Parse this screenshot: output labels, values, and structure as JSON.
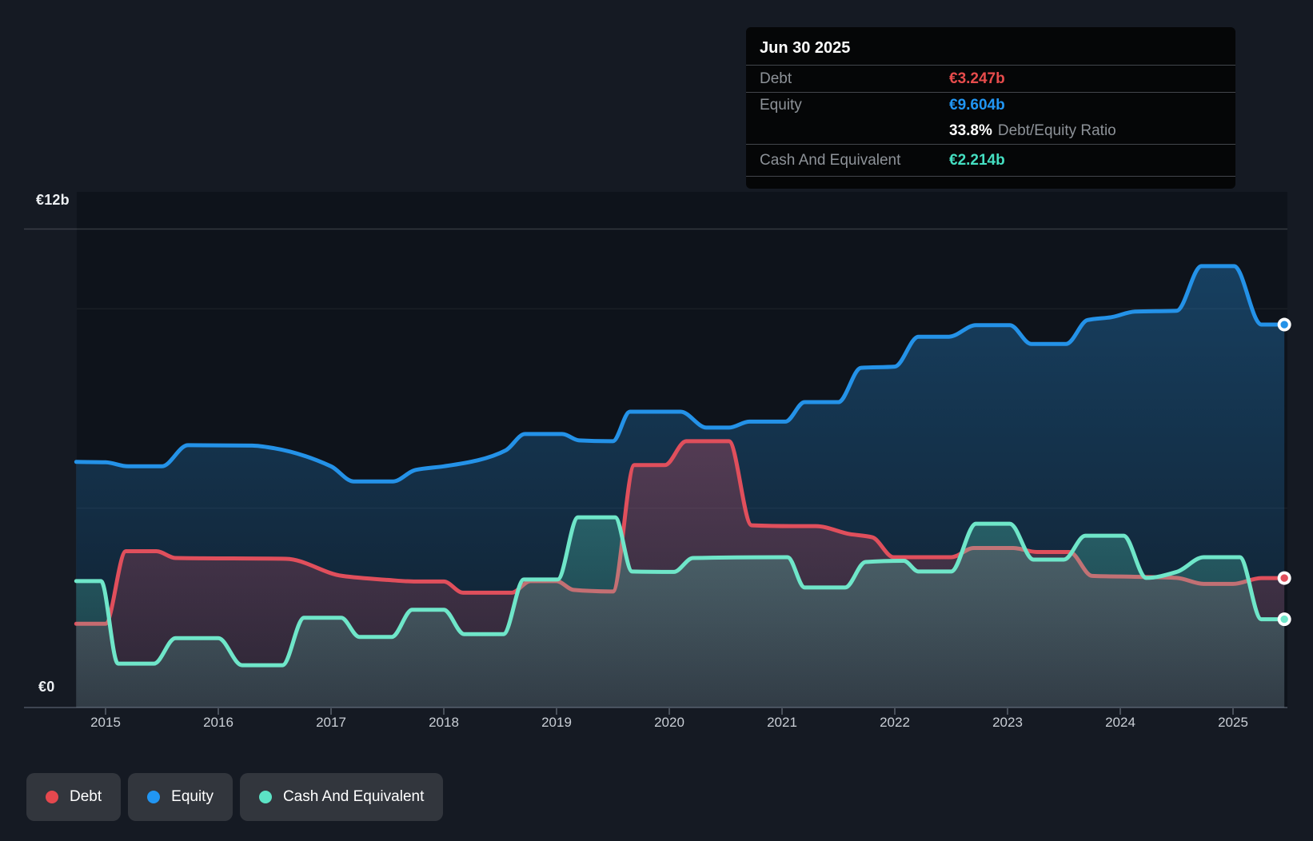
{
  "tooltip": {
    "date": "Jun 30 2025",
    "debt_label": "Debt",
    "debt_value": "€3.247b",
    "equity_label": "Equity",
    "equity_value": "€9.604b",
    "ratio_value": "33.8%",
    "ratio_label": "Debt/Equity Ratio",
    "cash_label": "Cash And Equivalent",
    "cash_value": "€2.214b"
  },
  "legend": {
    "items": [
      {
        "label": "Debt",
        "color": "#e5484e"
      },
      {
        "label": "Equity",
        "color": "#2196f3"
      },
      {
        "label": "Cash And Equivalent",
        "color": "#5ce3c5"
      }
    ]
  },
  "colors": {
    "background": "#151a23",
    "plot_background": "#0e131b",
    "debt": "#e04f5c",
    "equity": "#2492e8",
    "cash": "#6fe6c9",
    "debt_value_text": "#e74c4c",
    "equity_value_text": "#2196f3",
    "cash_value_text": "#45dfc2"
  },
  "chart_data": {
    "type": "area",
    "unit": "€ billions",
    "x_axis": {
      "ticks": [
        2015,
        2016,
        2017,
        2018,
        2019,
        2020,
        2021,
        2022,
        2023,
        2024,
        2025
      ],
      "range": [
        2014.74,
        2025.46
      ]
    },
    "y_axis": {
      "label_top": "€12b",
      "label_zero": "€0",
      "ylim": [
        0,
        12
      ],
      "gridlines": [
        {
          "value": 12,
          "style": "major"
        },
        {
          "value": 10,
          "style": "faint"
        },
        {
          "value": 5,
          "style": "faint"
        },
        {
          "value": 0,
          "style": "axis"
        }
      ]
    },
    "render_order": [
      "Equity",
      "Debt",
      "Cash And Equivalent"
    ],
    "series": [
      {
        "name": "Debt",
        "color": "#e04f5c",
        "fill_top": "rgba(228,80,100,0.30)",
        "fill_bottom": "rgba(228,80,100,0.13)",
        "values": [
          [
            2014.74,
            2.1
          ],
          [
            2015.0,
            2.1
          ],
          [
            2015.18,
            3.92
          ],
          [
            2015.45,
            3.92
          ],
          [
            2015.62,
            3.75
          ],
          [
            2016.6,
            3.73
          ],
          [
            2017.1,
            3.3
          ],
          [
            2017.5,
            3.2
          ],
          [
            2017.75,
            3.16
          ],
          [
            2018.0,
            3.16
          ],
          [
            2018.17,
            2.88
          ],
          [
            2018.6,
            2.88
          ],
          [
            2018.77,
            3.17
          ],
          [
            2019.0,
            3.17
          ],
          [
            2019.15,
            2.95
          ],
          [
            2019.5,
            2.91
          ],
          [
            2019.69,
            6.08
          ],
          [
            2019.96,
            6.08
          ],
          [
            2020.15,
            6.68
          ],
          [
            2020.53,
            6.68
          ],
          [
            2020.73,
            4.57
          ],
          [
            2021.1,
            4.55
          ],
          [
            2021.3,
            4.55
          ],
          [
            2021.6,
            4.35
          ],
          [
            2021.8,
            4.27
          ],
          [
            2021.99,
            3.77
          ],
          [
            2022.5,
            3.77
          ],
          [
            2022.7,
            4.0
          ],
          [
            2023.05,
            4.0
          ],
          [
            2023.26,
            3.9
          ],
          [
            2023.55,
            3.9
          ],
          [
            2023.75,
            3.3
          ],
          [
            2024.1,
            3.28
          ],
          [
            2024.5,
            3.25
          ],
          [
            2024.74,
            3.1
          ],
          [
            2025.0,
            3.1
          ],
          [
            2025.25,
            3.247
          ],
          [
            2025.455,
            3.247
          ]
        ]
      },
      {
        "name": "Equity",
        "color": "#2492e8",
        "fill_top": "rgba(36,130,200,0.40)",
        "fill_bottom": "rgba(36,130,200,0.10)",
        "values": [
          [
            2014.74,
            6.16
          ],
          [
            2015.0,
            6.15
          ],
          [
            2015.2,
            6.05
          ],
          [
            2015.5,
            6.05
          ],
          [
            2015.73,
            6.58
          ],
          [
            2016.3,
            6.57
          ],
          [
            2016.5,
            6.5
          ],
          [
            2017.0,
            6.05
          ],
          [
            2017.2,
            5.67
          ],
          [
            2017.55,
            5.67
          ],
          [
            2017.75,
            5.96
          ],
          [
            2018.0,
            6.05
          ],
          [
            2018.3,
            6.2
          ],
          [
            2018.55,
            6.45
          ],
          [
            2018.72,
            6.86
          ],
          [
            2019.05,
            6.86
          ],
          [
            2019.2,
            6.7
          ],
          [
            2019.5,
            6.68
          ],
          [
            2019.65,
            7.42
          ],
          [
            2020.1,
            7.42
          ],
          [
            2020.33,
            7.02
          ],
          [
            2020.53,
            7.02
          ],
          [
            2020.71,
            7.17
          ],
          [
            2021.03,
            7.17
          ],
          [
            2021.2,
            7.66
          ],
          [
            2021.5,
            7.66
          ],
          [
            2021.7,
            8.52
          ],
          [
            2022.0,
            8.55
          ],
          [
            2022.21,
            9.3
          ],
          [
            2022.48,
            9.3
          ],
          [
            2022.72,
            9.59
          ],
          [
            2023.02,
            9.59
          ],
          [
            2023.21,
            9.12
          ],
          [
            2023.52,
            9.12
          ],
          [
            2023.71,
            9.72
          ],
          [
            2023.92,
            9.79
          ],
          [
            2024.13,
            9.93
          ],
          [
            2024.5,
            9.95
          ],
          [
            2024.72,
            11.07
          ],
          [
            2025.01,
            11.07
          ],
          [
            2025.25,
            9.604
          ],
          [
            2025.455,
            9.604
          ]
        ]
      },
      {
        "name": "Cash And Equivalent",
        "color": "#6fe6c9",
        "fill_top": "rgba(92,227,197,0.28)",
        "fill_bottom": "rgba(92,227,197,0.12)",
        "values": [
          [
            2014.74,
            3.17
          ],
          [
            2014.96,
            3.17
          ],
          [
            2015.11,
            1.1
          ],
          [
            2015.43,
            1.1
          ],
          [
            2015.62,
            1.74
          ],
          [
            2016.0,
            1.74
          ],
          [
            2016.21,
            1.06
          ],
          [
            2016.57,
            1.06
          ],
          [
            2016.76,
            2.25
          ],
          [
            2017.09,
            2.25
          ],
          [
            2017.25,
            1.77
          ],
          [
            2017.54,
            1.77
          ],
          [
            2017.72,
            2.45
          ],
          [
            2018.0,
            2.45
          ],
          [
            2018.18,
            1.84
          ],
          [
            2018.53,
            1.84
          ],
          [
            2018.71,
            3.21
          ],
          [
            2019.01,
            3.21
          ],
          [
            2019.19,
            4.77
          ],
          [
            2019.52,
            4.77
          ],
          [
            2019.67,
            3.41
          ],
          [
            2020.04,
            3.4
          ],
          [
            2020.21,
            3.75
          ],
          [
            2021.05,
            3.77
          ],
          [
            2021.2,
            3.01
          ],
          [
            2021.56,
            3.01
          ],
          [
            2021.74,
            3.65
          ],
          [
            2022.08,
            3.68
          ],
          [
            2022.21,
            3.41
          ],
          [
            2022.5,
            3.41
          ],
          [
            2022.72,
            4.61
          ],
          [
            2023.02,
            4.61
          ],
          [
            2023.23,
            3.71
          ],
          [
            2023.5,
            3.71
          ],
          [
            2023.69,
            4.31
          ],
          [
            2024.03,
            4.31
          ],
          [
            2024.23,
            3.25
          ],
          [
            2024.5,
            3.4
          ],
          [
            2024.74,
            3.77
          ],
          [
            2025.06,
            3.77
          ],
          [
            2025.25,
            2.214
          ],
          [
            2025.455,
            2.214
          ]
        ]
      }
    ]
  }
}
